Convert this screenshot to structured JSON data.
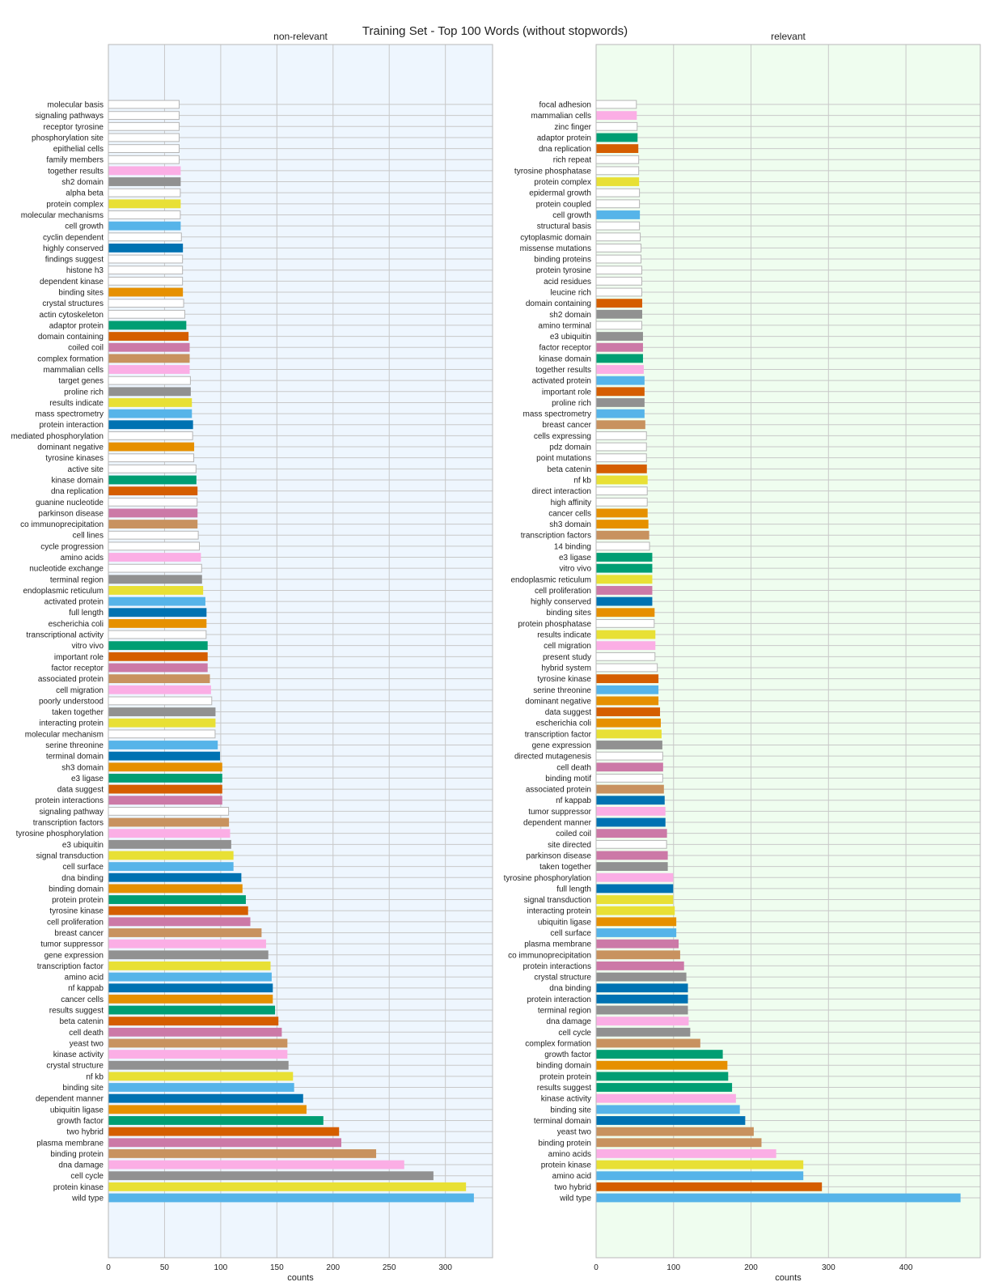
{
  "chart_data": {
    "title": "Training Set - Top 100 Words (without stopwords)",
    "xlabel": "counts",
    "palette": [
      "#56b4e9",
      "#e8e035",
      "#919191",
      "#fbaee5",
      "#c8925f",
      "#cc79a7",
      "#d55e00",
      "#009e73",
      "#e69000",
      "#0072b2",
      "#ffffff"
    ],
    "default_fill": "#ffffff",
    "panels": [
      {
        "type": "bar",
        "orientation": "horizontal",
        "title": "non-relevant",
        "background": "#eef6fe",
        "xlim": [
          0,
          342
        ],
        "xticks": [
          0,
          50,
          100,
          150,
          200,
          250,
          300
        ],
        "categories": [
          "molecular basis",
          "signaling pathways",
          "receptor tyrosine",
          "phosphorylation site",
          "epithelial cells",
          "family members",
          "together results",
          "sh2 domain",
          "alpha beta",
          "protein complex",
          "molecular mechanisms",
          "cell growth",
          "cyclin dependent",
          "highly conserved",
          "findings suggest",
          "histone h3",
          "dependent kinase",
          "binding sites",
          "crystal structures",
          "actin cytoskeleton",
          "adaptor protein",
          "domain containing",
          "coiled coil",
          "complex formation",
          "mammalian cells",
          "target genes",
          "proline rich",
          "results indicate",
          "mass spectrometry",
          "protein interaction",
          "mediated phosphorylation",
          "dominant negative",
          "tyrosine kinases",
          "active site",
          "kinase domain",
          "dna replication",
          "guanine nucleotide",
          "parkinson disease",
          "co immunoprecipitation",
          "cell lines",
          "cycle progression",
          "amino acids",
          "nucleotide exchange",
          "terminal region",
          "endoplasmic reticulum",
          "activated protein",
          "full length",
          "escherichia coli",
          "transcriptional activity",
          "vitro vivo",
          "important role",
          "factor receptor",
          "associated protein",
          "cell migration",
          "poorly understood",
          "taken together",
          "interacting protein",
          "molecular mechanism",
          "serine threonine",
          "terminal domain",
          "sh3 domain",
          "e3 ligase",
          "data suggest",
          "protein interactions",
          "signaling pathway",
          "transcription factors",
          "tyrosine phosphorylation",
          "e3 ubiquitin",
          "signal transduction",
          "cell surface",
          "dna binding",
          "binding domain",
          "protein protein",
          "tyrosine kinase",
          "cell proliferation",
          "breast cancer",
          "tumor suppressor",
          "gene expression",
          "transcription factor",
          "amino acid",
          "nf kappab",
          "cancer cells",
          "results suggest",
          "beta catenin",
          "cell death",
          "yeast two",
          "kinase activity",
          "crystal structure",
          "nf kb",
          "binding site",
          "dependent manner",
          "ubiquitin ligase",
          "growth factor",
          "two hybrid",
          "plasma membrane",
          "binding protein",
          "dna damage",
          "cell cycle",
          "protein kinase",
          "wild type"
        ],
        "values": [
          63,
          63,
          63,
          63,
          63,
          63,
          64,
          64,
          64,
          64,
          64,
          64,
          65,
          66,
          66,
          66,
          66,
          66,
          67,
          68,
          69,
          71,
          72,
          72,
          72,
          73,
          73,
          74,
          74,
          75,
          75,
          76,
          76,
          78,
          78,
          79,
          79,
          79,
          79,
          80,
          81,
          82,
          83,
          83,
          84,
          86,
          87,
          87,
          87,
          88,
          88,
          88,
          90,
          91,
          92,
          95,
          95,
          95,
          97,
          99,
          101,
          101,
          101,
          101,
          107,
          107,
          108,
          109,
          111,
          111,
          118,
          119,
          122,
          124,
          126,
          136,
          140,
          142,
          144,
          145,
          146,
          146,
          148,
          151,
          154,
          159,
          159,
          160,
          164,
          165,
          173,
          176,
          191,
          205,
          207,
          238,
          263,
          289,
          318,
          325
        ],
        "colors": [
          "#ffffff",
          "#ffffff",
          "#ffffff",
          "#ffffff",
          "#ffffff",
          "#ffffff",
          "#fbaee5",
          "#919191",
          "#ffffff",
          "#e8e035",
          "#ffffff",
          "#56b4e9",
          "#ffffff",
          "#0072b2",
          "#ffffff",
          "#ffffff",
          "#ffffff",
          "#e69000",
          "#ffffff",
          "#ffffff",
          "#009e73",
          "#d55e00",
          "#cc79a7",
          "#c8925f",
          "#fbaee5",
          "#ffffff",
          "#919191",
          "#e8e035",
          "#56b4e9",
          "#0072b2",
          "#ffffff",
          "#e69000",
          "#ffffff",
          "#ffffff",
          "#009e73",
          "#d55e00",
          "#ffffff",
          "#cc79a7",
          "#c8925f",
          "#ffffff",
          "#ffffff",
          "#fbaee5",
          "#ffffff",
          "#919191",
          "#e8e035",
          "#56b4e9",
          "#0072b2",
          "#e69000",
          "#ffffff",
          "#009e73",
          "#d55e00",
          "#cc79a7",
          "#c8925f",
          "#fbaee5",
          "#ffffff",
          "#919191",
          "#e8e035",
          "#ffffff",
          "#56b4e9",
          "#0072b2",
          "#e69000",
          "#009e73",
          "#d55e00",
          "#cc79a7",
          "#ffffff",
          "#c8925f",
          "#fbaee5",
          "#919191",
          "#e8e035",
          "#56b4e9",
          "#0072b2",
          "#e69000",
          "#009e73",
          "#d55e00",
          "#cc79a7",
          "#c8925f",
          "#fbaee5",
          "#919191",
          "#e8e035",
          "#56b4e9",
          "#0072b2",
          "#e69000",
          "#009e73",
          "#d55e00",
          "#cc79a7",
          "#c8925f",
          "#fbaee5",
          "#919191",
          "#e8e035",
          "#56b4e9",
          "#0072b2",
          "#e69000",
          "#009e73",
          "#d55e00",
          "#cc79a7",
          "#c8925f",
          "#fbaee5",
          "#919191",
          "#e8e035",
          "#56b4e9"
        ]
      },
      {
        "type": "bar",
        "orientation": "horizontal",
        "title": "relevant",
        "background": "#effdef",
        "xlim": [
          0,
          496
        ],
        "xticks": [
          0,
          100,
          200,
          300,
          400
        ],
        "categories": [
          "focal adhesion",
          "mammalian cells",
          "zinc finger",
          "adaptor protein",
          "dna replication",
          "rich repeat",
          "tyrosine phosphatase",
          "protein complex",
          "epidermal growth",
          "protein coupled",
          "cell growth",
          "structural basis",
          "cytoplasmic domain",
          "missense mutations",
          "binding proteins",
          "protein tyrosine",
          "acid residues",
          "leucine rich",
          "domain containing",
          "sh2 domain",
          "amino terminal",
          "e3 ubiquitin",
          "factor receptor",
          "kinase domain",
          "together results",
          "activated protein",
          "important role",
          "proline rich",
          "mass spectrometry",
          "breast cancer",
          "cells expressing",
          "pdz domain",
          "point mutations",
          "beta catenin",
          "nf kb",
          "direct interaction",
          "high affinity",
          "cancer cells",
          "sh3 domain",
          "transcription factors",
          "14 binding",
          "e3 ligase",
          "vitro vivo",
          "endoplasmic reticulum",
          "cell proliferation",
          "highly conserved",
          "binding sites",
          "protein phosphatase",
          "results indicate",
          "cell migration",
          "present study",
          "hybrid system",
          "tyrosine kinase",
          "serine threonine",
          "dominant negative",
          "data suggest",
          "escherichia coli",
          "transcription factor",
          "gene expression",
          "directed mutagenesis",
          "cell death",
          "binding motif",
          "associated protein",
          "nf kappab",
          "tumor suppressor",
          "dependent manner",
          "coiled coil",
          "site directed",
          "parkinson disease",
          "taken together",
          "tyrosine phosphorylation",
          "full length",
          "signal transduction",
          "interacting protein",
          "ubiquitin ligase",
          "cell surface",
          "plasma membrane",
          "co immunoprecipitation",
          "protein interactions",
          "crystal structure",
          "dna binding",
          "protein interaction",
          "terminal region",
          "dna damage",
          "cell cycle",
          "complex formation",
          "growth factor",
          "binding domain",
          "protein protein",
          "results suggest",
          "kinase activity",
          "binding site",
          "terminal domain",
          "yeast two",
          "binding protein",
          "amino acids",
          "protein kinase",
          "amino acid",
          "two hybrid",
          "wild type"
        ],
        "values": [
          52,
          52,
          53,
          53,
          54,
          55,
          55,
          55,
          56,
          56,
          56,
          56,
          57,
          58,
          58,
          59,
          59,
          59,
          59,
          59,
          59,
          60,
          60,
          60,
          61,
          62,
          62,
          62,
          62,
          63,
          65,
          65,
          65,
          65,
          66,
          66,
          66,
          66,
          67,
          68,
          69,
          72,
          72,
          72,
          72,
          72,
          75,
          75,
          76,
          76,
          76,
          79,
          80,
          80,
          80,
          82,
          83,
          84,
          85,
          86,
          86,
          86,
          87,
          88,
          89,
          89,
          91,
          91,
          92,
          92,
          99,
          99,
          99,
          101,
          103,
          103,
          106,
          108,
          113,
          116,
          118,
          118,
          118,
          119,
          121,
          134,
          163,
          169,
          170,
          175,
          180,
          185,
          192,
          203,
          213,
          232,
          267,
          267,
          291,
          470
        ],
        "colors": [
          "#ffffff",
          "#fbaee5",
          "#ffffff",
          "#009e73",
          "#d55e00",
          "#ffffff",
          "#ffffff",
          "#e8e035",
          "#ffffff",
          "#ffffff",
          "#56b4e9",
          "#ffffff",
          "#ffffff",
          "#ffffff",
          "#ffffff",
          "#ffffff",
          "#ffffff",
          "#ffffff",
          "#d55e00",
          "#919191",
          "#ffffff",
          "#919191",
          "#cc79a7",
          "#009e73",
          "#fbaee5",
          "#56b4e9",
          "#d55e00",
          "#919191",
          "#56b4e9",
          "#c8925f",
          "#ffffff",
          "#ffffff",
          "#ffffff",
          "#d55e00",
          "#e8e035",
          "#ffffff",
          "#ffffff",
          "#e69000",
          "#e69000",
          "#c8925f",
          "#ffffff",
          "#009e73",
          "#009e73",
          "#e8e035",
          "#cc79a7",
          "#0072b2",
          "#e69000",
          "#ffffff",
          "#e8e035",
          "#fbaee5",
          "#ffffff",
          "#ffffff",
          "#d55e00",
          "#56b4e9",
          "#e69000",
          "#d55e00",
          "#e69000",
          "#e8e035",
          "#919191",
          "#ffffff",
          "#cc79a7",
          "#ffffff",
          "#c8925f",
          "#0072b2",
          "#fbaee5",
          "#0072b2",
          "#cc79a7",
          "#ffffff",
          "#cc79a7",
          "#919191",
          "#fbaee5",
          "#0072b2",
          "#e8e035",
          "#e8e035",
          "#e69000",
          "#56b4e9",
          "#cc79a7",
          "#c8925f",
          "#cc79a7",
          "#919191",
          "#0072b2",
          "#0072b2",
          "#919191",
          "#fbaee5",
          "#919191",
          "#c8925f",
          "#009e73",
          "#e69000",
          "#009e73",
          "#009e73",
          "#fbaee5",
          "#56b4e9",
          "#0072b2",
          "#c8925f",
          "#c8925f",
          "#fbaee5",
          "#e8e035",
          "#56b4e9",
          "#d55e00",
          "#56b4e9"
        ]
      }
    ]
  }
}
